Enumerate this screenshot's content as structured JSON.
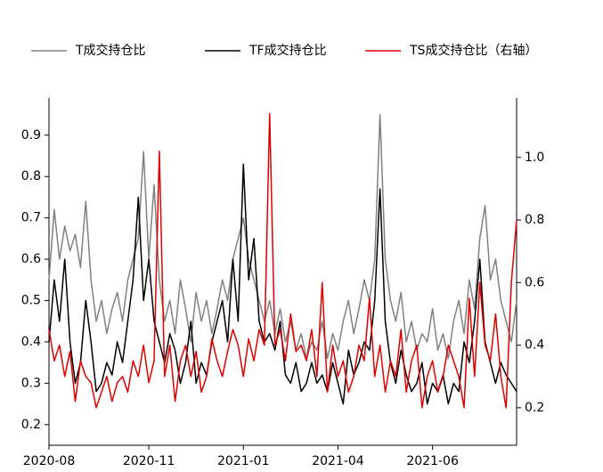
{
  "chart_data": {
    "type": "line",
    "x": [
      0,
      1,
      2,
      3,
      4,
      5,
      6,
      7,
      8,
      9,
      10,
      11,
      12,
      13,
      14,
      15,
      16,
      17,
      18,
      19,
      20,
      21,
      22,
      23,
      24,
      25,
      26,
      27,
      28,
      29,
      30,
      31,
      32,
      33,
      34,
      35,
      36,
      37,
      38,
      39,
      40,
      41,
      42,
      43,
      44,
      45,
      46,
      47,
      48,
      49,
      50,
      51,
      52,
      53,
      54,
      55,
      56,
      57,
      58,
      59,
      60,
      61,
      62,
      63,
      64,
      65,
      66,
      67,
      68,
      69,
      70,
      71,
      72,
      73,
      74,
      75,
      76,
      77,
      78,
      79,
      80,
      81,
      82,
      83,
      84,
      85,
      86,
      87,
      88,
      89
    ],
    "xlim": [
      0,
      89
    ],
    "xticks": [
      {
        "value": 0,
        "label": "2020-08"
      },
      {
        "value": 19,
        "label": "2020-11"
      },
      {
        "value": 37,
        "label": "2021-01"
      },
      {
        "value": 55,
        "label": "2021-04"
      },
      {
        "value": 73,
        "label": "2021-06"
      }
    ],
    "ylim": [
      0.15,
      0.99
    ],
    "yticks": [
      0.2,
      0.3,
      0.4,
      0.5,
      0.6,
      0.7,
      0.8,
      0.9
    ],
    "y2lim": [
      0.08,
      1.19
    ],
    "y2ticks": [
      0.2,
      0.4,
      0.6,
      0.8,
      {
        "value": 1,
        "label": "1.0"
      }
    ],
    "legend": "top",
    "series": [
      {
        "name": "T成交持仓比",
        "color": "#808080",
        "values": [
          0.55,
          0.72,
          0.6,
          0.68,
          0.62,
          0.66,
          0.58,
          0.74,
          0.55,
          0.45,
          0.5,
          0.42,
          0.48,
          0.52,
          0.45,
          0.55,
          0.6,
          0.65,
          0.86,
          0.6,
          0.78,
          0.55,
          0.45,
          0.5,
          0.42,
          0.55,
          0.48,
          0.4,
          0.52,
          0.45,
          0.5,
          0.42,
          0.48,
          0.55,
          0.5,
          0.6,
          0.65,
          0.7,
          0.6,
          0.55,
          0.5,
          0.45,
          0.5,
          0.42,
          0.48,
          0.4,
          0.45,
          0.38,
          0.42,
          0.36,
          0.4,
          0.38,
          0.45,
          0.36,
          0.42,
          0.38,
          0.45,
          0.5,
          0.42,
          0.48,
          0.55,
          0.5,
          0.6,
          0.95,
          0.6,
          0.5,
          0.45,
          0.52,
          0.4,
          0.45,
          0.38,
          0.42,
          0.4,
          0.48,
          0.38,
          0.42,
          0.36,
          0.45,
          0.5,
          0.42,
          0.55,
          0.48,
          0.65,
          0.73,
          0.55,
          0.6,
          0.5,
          0.45,
          0.4,
          0.5
        ]
      },
      {
        "name": "TF成交持仓比",
        "color": "#000000",
        "values": [
          0.4,
          0.55,
          0.45,
          0.6,
          0.4,
          0.3,
          0.35,
          0.5,
          0.4,
          0.28,
          0.3,
          0.35,
          0.32,
          0.4,
          0.35,
          0.45,
          0.55,
          0.75,
          0.5,
          0.6,
          0.45,
          0.4,
          0.35,
          0.42,
          0.38,
          0.3,
          0.35,
          0.45,
          0.3,
          0.35,
          0.32,
          0.4,
          0.45,
          0.5,
          0.4,
          0.6,
          0.45,
          0.83,
          0.55,
          0.65,
          0.45,
          0.4,
          0.42,
          0.38,
          0.45,
          0.32,
          0.3,
          0.35,
          0.28,
          0.3,
          0.35,
          0.3,
          0.32,
          0.28,
          0.35,
          0.3,
          0.25,
          0.38,
          0.32,
          0.35,
          0.4,
          0.38,
          0.5,
          0.77,
          0.45,
          0.35,
          0.3,
          0.38,
          0.32,
          0.28,
          0.3,
          0.35,
          0.25,
          0.3,
          0.28,
          0.32,
          0.25,
          0.3,
          0.28,
          0.4,
          0.35,
          0.45,
          0.6,
          0.4,
          0.35,
          0.3,
          0.35,
          0.32,
          0.3,
          0.28
        ]
      },
      {
        "name": "TS成交持仓比（右轴）",
        "color": "#e00000",
        "axis": "y2",
        "values": [
          0.45,
          0.35,
          0.4,
          0.3,
          0.38,
          0.22,
          0.35,
          0.3,
          0.28,
          0.2,
          0.25,
          0.3,
          0.22,
          0.28,
          0.3,
          0.25,
          0.35,
          0.3,
          0.4,
          0.28,
          0.35,
          1.02,
          0.3,
          0.4,
          0.22,
          0.35,
          0.4,
          0.3,
          0.38,
          0.25,
          0.3,
          0.42,
          0.35,
          0.3,
          0.38,
          0.45,
          0.4,
          0.3,
          0.42,
          0.35,
          0.45,
          0.4,
          1.14,
          0.4,
          0.45,
          0.35,
          0.5,
          0.38,
          0.4,
          0.35,
          0.45,
          0.3,
          0.6,
          0.25,
          0.4,
          0.3,
          0.35,
          0.25,
          0.3,
          0.4,
          0.35,
          0.55,
          0.3,
          0.4,
          0.25,
          0.35,
          0.3,
          0.45,
          0.25,
          0.35,
          0.4,
          0.2,
          0.3,
          0.35,
          0.25,
          0.3,
          0.4,
          0.35,
          0.3,
          0.2,
          0.55,
          0.3,
          0.6,
          0.4,
          0.35,
          0.5,
          0.3,
          0.2,
          0.6,
          0.8
        ]
      }
    ]
  }
}
